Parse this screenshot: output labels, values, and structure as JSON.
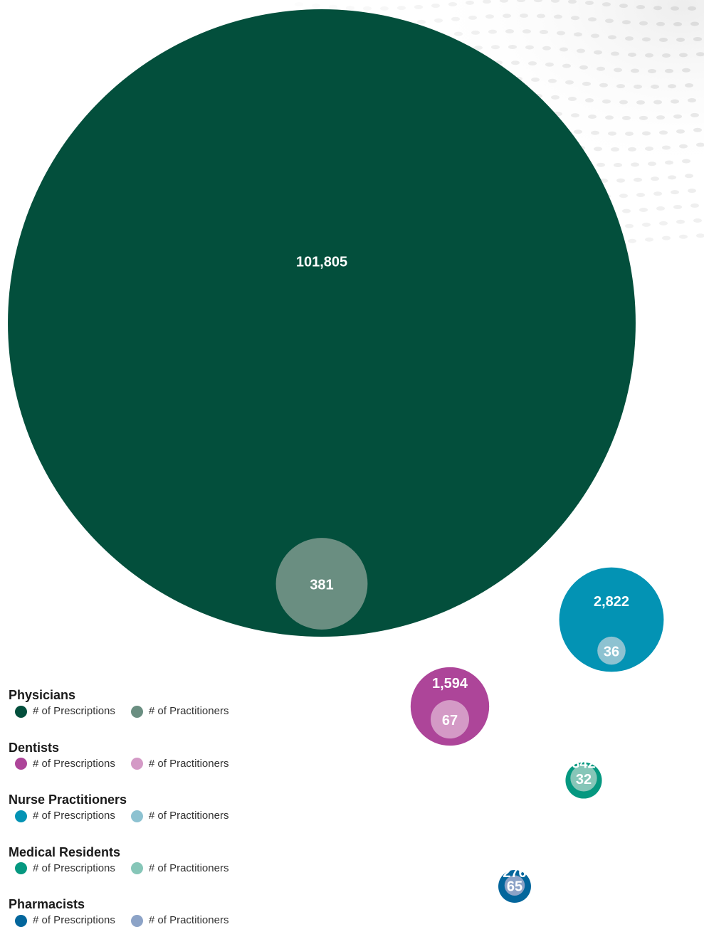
{
  "chart_data": {
    "type": "bubble",
    "series_labels": {
      "prescriptions": "# of Prescriptions",
      "practitioners": "# of Practitioners"
    },
    "groups": [
      {
        "name": "Physicians",
        "prescriptions": 101805,
        "prescriptions_label": "101,805",
        "practitioners": 381,
        "practitioners_label": "381",
        "color": "#034f3c",
        "light_color": "#6a8e81"
      },
      {
        "name": "Dentists",
        "prescriptions": 1594,
        "prescriptions_label": "1,594",
        "practitioners": 67,
        "practitioners_label": "67",
        "color": "#ad4599",
        "light_color": "#d49ac6"
      },
      {
        "name": "Nurse Practitioners",
        "prescriptions": 2822,
        "prescriptions_label": "2,822",
        "practitioners": 36,
        "practitioners_label": "36",
        "color": "#0393b4",
        "light_color": "#8dc2d1"
      },
      {
        "name": "Medical Residents",
        "prescriptions": 342,
        "prescriptions_label": "342",
        "practitioners": 32,
        "practitioners_label": "32",
        "color": "#059880",
        "light_color": "#86c6b8"
      },
      {
        "name": "Pharmacists",
        "prescriptions": 276,
        "prescriptions_label": "276",
        "practitioners": 65,
        "practitioners_label": "65",
        "color": "#03669c",
        "light_color": "#8ca3c7"
      }
    ]
  }
}
